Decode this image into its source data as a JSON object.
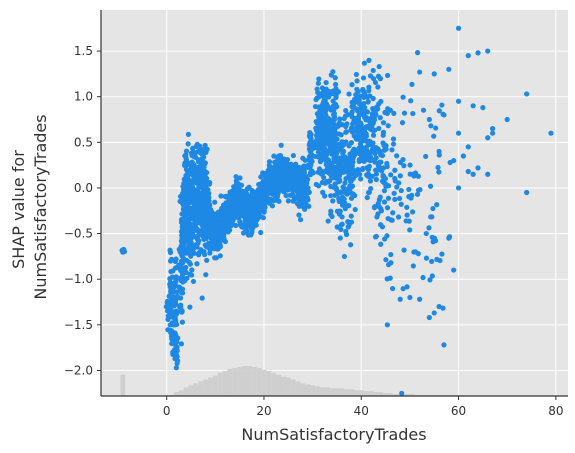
{
  "chart_data": {
    "type": "scatter",
    "xlabel": "NumSatisfactoryTrades",
    "ylabel_lines": [
      "SHAP value for",
      "NumSatisfactoryTrades"
    ],
    "xlim": [
      -13.5,
      82.5
    ],
    "ylim": [
      -2.28,
      1.95
    ],
    "x_ticks": [
      0,
      20,
      40,
      60,
      80
    ],
    "y_ticks": [
      -2.0,
      -1.5,
      -1.0,
      -0.5,
      0.0,
      0.5,
      1.0,
      1.5
    ],
    "x_tick_labels": [
      "0",
      "20",
      "40",
      "60",
      "80"
    ],
    "y_tick_labels": [
      "−2.0",
      "−1.5",
      "−1.0",
      "−0.5",
      "0.0",
      "0.5",
      "1.0",
      "1.5"
    ],
    "grid": true,
    "colors": {
      "plot_background": "#e5e5e5",
      "grid": "#ffffff",
      "points": "#1e88e5",
      "histogram": "#cccccc",
      "axis": "#333333"
    },
    "histogram": {
      "bin_centers": [
        -9,
        1,
        2,
        3,
        4,
        5,
        6,
        7,
        8,
        9,
        10,
        11,
        12,
        13,
        14,
        15,
        16,
        17,
        18,
        19,
        20,
        21,
        22,
        23,
        24,
        25,
        26,
        27,
        28,
        29,
        30,
        31,
        32,
        33,
        34,
        35,
        36,
        37,
        38,
        39,
        40,
        41,
        42,
        43,
        44,
        45,
        46,
        47,
        48,
        49,
        50,
        52,
        54,
        56,
        58,
        60
      ],
      "counts": [
        0.22,
        0.01,
        0.04,
        0.06,
        0.09,
        0.11,
        0.13,
        0.15,
        0.17,
        0.19,
        0.21,
        0.24,
        0.26,
        0.28,
        0.29,
        0.3,
        0.31,
        0.31,
        0.3,
        0.29,
        0.27,
        0.26,
        0.24,
        0.22,
        0.2,
        0.19,
        0.17,
        0.15,
        0.13,
        0.12,
        0.11,
        0.1,
        0.09,
        0.09,
        0.08,
        0.08,
        0.08,
        0.07,
        0.07,
        0.06,
        0.06,
        0.05,
        0.05,
        0.04,
        0.04,
        0.03,
        0.03,
        0.02,
        0.02,
        0.02,
        0.02,
        0.01,
        0.01,
        0.01,
        0.01,
        0.01
      ]
    },
    "series": [
      {
        "clusters": [
          {
            "x": -9,
            "xs": 0.12,
            "y": -0.69,
            "ys": 0.01,
            "n": 14
          },
          {
            "x": 0.2,
            "xs": 0.15,
            "y": -1.35,
            "ys": 0.12,
            "n": 10
          },
          {
            "x": 0.8,
            "xs": 0.2,
            "y": -1.0,
            "ys": 0.22,
            "n": 14
          },
          {
            "x": 1.2,
            "xs": 0.25,
            "y": -1.4,
            "ys": 0.25,
            "n": 40
          },
          {
            "x": 1.8,
            "xs": 0.2,
            "y": -1.25,
            "ys": 0.3,
            "n": 40
          },
          {
            "x": 2.0,
            "xs": 0.2,
            "y": -1.85,
            "ys": 0.15,
            "n": 14
          },
          {
            "x": 3.0,
            "xs": 0.3,
            "y": -0.95,
            "ys": 0.3,
            "n": 40
          },
          {
            "x": 3.5,
            "xs": 0.3,
            "y": -0.45,
            "ys": 0.3,
            "n": 80
          },
          {
            "x": 4.0,
            "xs": 0.3,
            "y": -0.1,
            "ys": 0.25,
            "n": 80
          },
          {
            "x": 4.5,
            "xs": 0.3,
            "y": -0.3,
            "ys": 0.35,
            "n": 80
          },
          {
            "x": 5.5,
            "xs": 0.4,
            "y": -0.2,
            "ys": 0.3,
            "n": 100
          },
          {
            "x": 6.5,
            "xs": 0.4,
            "y": -0.15,
            "ys": 0.3,
            "n": 100
          },
          {
            "x": 7.5,
            "xs": 0.4,
            "y": -0.05,
            "ys": 0.3,
            "n": 90
          },
          {
            "x": 8.5,
            "xs": 0.4,
            "y": -0.35,
            "ys": 0.18,
            "n": 80
          },
          {
            "x": 9.5,
            "xs": 0.4,
            "y": -0.45,
            "ys": 0.12,
            "n": 70
          },
          {
            "x": 10.5,
            "xs": 0.4,
            "y": -0.5,
            "ys": 0.12,
            "n": 70
          },
          {
            "x": 11.5,
            "xs": 0.4,
            "y": -0.4,
            "ys": 0.1,
            "n": 70
          },
          {
            "x": 12.5,
            "xs": 0.4,
            "y": -0.3,
            "ys": 0.1,
            "n": 70
          },
          {
            "x": 13.5,
            "xs": 0.4,
            "y": -0.2,
            "ys": 0.1,
            "n": 70
          },
          {
            "x": 14.5,
            "xs": 0.4,
            "y": -0.05,
            "ys": 0.08,
            "n": 70
          },
          {
            "x": 15.5,
            "xs": 0.4,
            "y": -0.2,
            "ys": 0.1,
            "n": 70
          },
          {
            "x": 16.5,
            "xs": 0.4,
            "y": -0.25,
            "ys": 0.1,
            "n": 70
          },
          {
            "x": 17.5,
            "xs": 0.4,
            "y": -0.28,
            "ys": 0.1,
            "n": 70
          },
          {
            "x": 18.5,
            "xs": 0.4,
            "y": -0.2,
            "ys": 0.1,
            "n": 70
          },
          {
            "x": 19.5,
            "xs": 0.4,
            "y": -0.1,
            "ys": 0.1,
            "n": 70
          },
          {
            "x": 20.5,
            "xs": 0.4,
            "y": 0.0,
            "ys": 0.1,
            "n": 60
          },
          {
            "x": 21.5,
            "xs": 0.4,
            "y": 0.05,
            "ys": 0.1,
            "n": 60
          },
          {
            "x": 22.5,
            "xs": 0.4,
            "y": 0.1,
            "ys": 0.1,
            "n": 60
          },
          {
            "x": 23.5,
            "xs": 0.4,
            "y": 0.18,
            "ys": 0.1,
            "n": 60
          },
          {
            "x": 24.5,
            "xs": 0.4,
            "y": 0.15,
            "ys": 0.1,
            "n": 60
          },
          {
            "x": 25.5,
            "xs": 0.4,
            "y": 0.12,
            "ys": 0.1,
            "n": 60
          },
          {
            "x": 26.5,
            "xs": 0.4,
            "y": 0.08,
            "ys": 0.1,
            "n": 50
          },
          {
            "x": 27.5,
            "xs": 0.4,
            "y": 0.0,
            "ys": 0.12,
            "n": 50
          },
          {
            "x": 28.5,
            "xs": 0.4,
            "y": 0.05,
            "ys": 0.15,
            "n": 50
          },
          {
            "x": 29.5,
            "xs": 0.3,
            "y": 0.35,
            "ys": 0.15,
            "n": 40
          },
          {
            "x": 31.5,
            "xs": 0.5,
            "y": 0.6,
            "ys": 0.25,
            "n": 90
          },
          {
            "x": 32.5,
            "xs": 0.5,
            "y": 0.7,
            "ys": 0.25,
            "n": 90
          },
          {
            "x": 33.5,
            "xs": 0.5,
            "y": 0.4,
            "ys": 0.3,
            "n": 70
          },
          {
            "x": 34.5,
            "xs": 0.5,
            "y": 0.5,
            "ys": 0.35,
            "n": 70
          },
          {
            "x": 35.5,
            "xs": 0.5,
            "y": 0.2,
            "ys": 0.3,
            "n": 60
          },
          {
            "x": 36.5,
            "xs": 0.5,
            "y": 0.1,
            "ys": 0.35,
            "n": 50
          },
          {
            "x": 37.5,
            "xs": 0.5,
            "y": 0.1,
            "ys": 0.35,
            "n": 40
          },
          {
            "x": 38.5,
            "xs": 0.5,
            "y": 0.5,
            "ys": 0.3,
            "n": 50
          },
          {
            "x": 39.5,
            "xs": 0.5,
            "y": 0.7,
            "ys": 0.3,
            "n": 50
          },
          {
            "x": 40.5,
            "xs": 0.5,
            "y": 0.6,
            "ys": 0.3,
            "n": 50
          },
          {
            "x": 41.5,
            "xs": 0.5,
            "y": 0.5,
            "ys": 0.35,
            "n": 40
          },
          {
            "x": 42.5,
            "xs": 0.5,
            "y": 0.55,
            "ys": 0.35,
            "n": 40
          },
          {
            "x": 43.5,
            "xs": 0.5,
            "y": 0.4,
            "ys": 0.35,
            "n": 30
          },
          {
            "x": 44.5,
            "xs": 0.5,
            "y": 0.1,
            "ys": 0.4,
            "n": 25
          },
          {
            "x": 45.5,
            "xs": 0.6,
            "y": -0.1,
            "ys": 0.5,
            "n": 25
          },
          {
            "x": 47.0,
            "xs": 0.8,
            "y": -0.2,
            "ys": 0.6,
            "n": 20
          },
          {
            "x": 49.0,
            "xs": 0.8,
            "y": 0.0,
            "ys": 0.6,
            "n": 18
          },
          {
            "x": 51.0,
            "xs": 0.8,
            "y": 0.0,
            "ys": 0.6,
            "n": 16
          },
          {
            "x": 53.0,
            "xs": 1.0,
            "y": -0.3,
            "ys": 0.6,
            "n": 14
          },
          {
            "x": 55.0,
            "xs": 1.0,
            "y": -0.5,
            "ys": 0.5,
            "n": 12
          },
          {
            "x": 57.0,
            "xs": 1.2,
            "y": -0.3,
            "ys": 0.6,
            "n": 10
          }
        ],
        "points": [
          [
            60,
            1.75
          ],
          [
            62,
            1.45
          ],
          [
            64,
            1.48
          ],
          [
            66,
            1.5
          ],
          [
            58,
            1.3
          ],
          [
            55,
            1.25
          ],
          [
            52,
            1.27
          ],
          [
            60,
            0.95
          ],
          [
            63,
            0.9
          ],
          [
            65,
            0.88
          ],
          [
            67,
            0.6
          ],
          [
            67,
            0.65
          ],
          [
            70,
            0.75
          ],
          [
            74,
            1.03
          ],
          [
            79,
            0.6
          ],
          [
            74,
            -0.05
          ],
          [
            66,
            0.15
          ],
          [
            62,
            0.18
          ],
          [
            60,
            0.0
          ],
          [
            63,
            0.15
          ],
          [
            57,
            -1.72
          ],
          [
            54,
            -1.42
          ],
          [
            55,
            -1.37
          ],
          [
            50,
            -1.2
          ],
          [
            48,
            -1.22
          ],
          [
            52,
            -1.22
          ],
          [
            56,
            -1.3
          ],
          [
            59,
            -0.9
          ],
          [
            58,
            -0.55
          ],
          [
            60,
            0.6
          ],
          [
            61,
            0.35
          ],
          [
            64,
            0.22
          ],
          [
            66,
            0.55
          ],
          [
            62,
            0.45
          ],
          [
            59,
            0.3
          ],
          [
            56,
            0.4
          ],
          [
            57,
            0.8
          ],
          [
            54,
            0.75
          ]
        ]
      }
    ]
  }
}
